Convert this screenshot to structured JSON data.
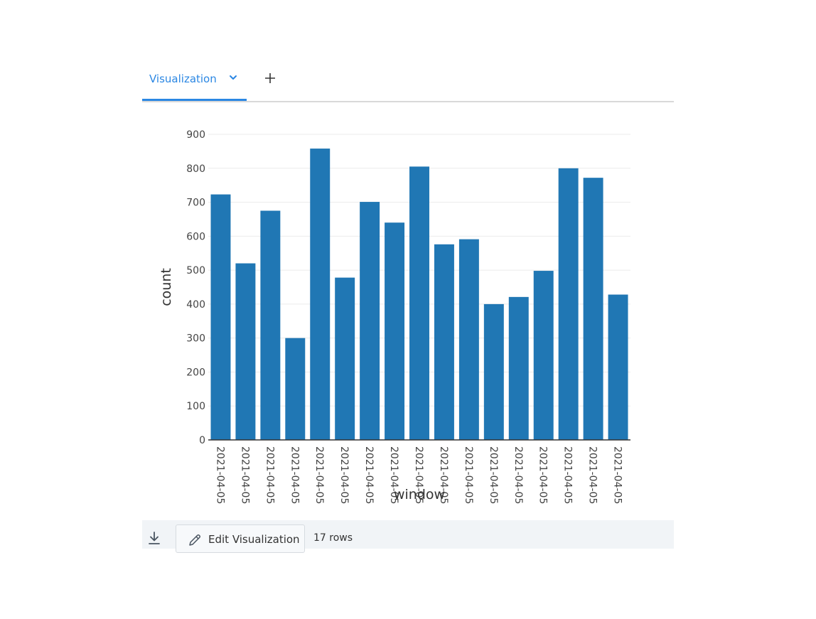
{
  "tabs": {
    "active_label": "Visualization",
    "icons": {
      "chevron": "chevron-down-icon",
      "add": "plus-icon"
    }
  },
  "footer": {
    "edit_label": "Edit Visualization",
    "row_count": "17 rows",
    "icons": {
      "download": "download-icon",
      "edit": "pencil-icon"
    }
  },
  "chart_data": {
    "type": "bar",
    "xlabel": "window",
    "ylabel": "count",
    "ylim": [
      0,
      900
    ],
    "yticks": [
      0,
      100,
      200,
      300,
      400,
      500,
      600,
      700,
      800,
      900
    ],
    "grid": true,
    "bar_color": "#2077b4",
    "categories": [
      "2021-04-05",
      "2021-04-05",
      "2021-04-05",
      "2021-04-05",
      "2021-04-05",
      "2021-04-05",
      "2021-04-05",
      "2021-04-05",
      "2021-04-05",
      "2021-04-05",
      "2021-04-05",
      "2021-04-05",
      "2021-04-05",
      "2021-04-05",
      "2021-04-05",
      "2021-04-05",
      "2021-04-05"
    ],
    "values": [
      723,
      520,
      675,
      300,
      858,
      478,
      701,
      640,
      805,
      576,
      591,
      400,
      421,
      498,
      800,
      772,
      428
    ]
  }
}
